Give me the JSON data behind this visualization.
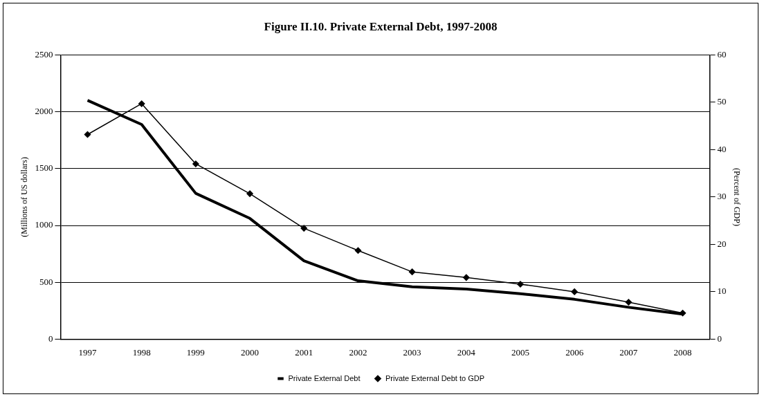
{
  "chart_data": {
    "type": "line",
    "title": "Figure II.10. Private External Debt, 1997-2008",
    "ylabel": "(Millions of US dollars)",
    "y2label": "(Percent of GDP)",
    "categories": [
      "1997",
      "1998",
      "1999",
      "2000",
      "2001",
      "2002",
      "2003",
      "2004",
      "2005",
      "2006",
      "2007",
      "2008"
    ],
    "series": [
      {
        "name": "Private External Debt",
        "color": "#000000",
        "marker": "none",
        "values": [
          2100,
          1888,
          1282,
          1062,
          689,
          513,
          460,
          440,
          400,
          350,
          280,
          220
        ]
      },
      {
        "name": "Private External Debt to GDP",
        "color": "#000000",
        "marker": "diamond",
        "axis": "y2",
        "values": [
          43.2,
          49.7,
          37.0,
          30.7,
          23.4,
          18.7,
          14.2,
          13.0,
          11.6,
          10.0,
          7.8,
          5.5
        ]
      }
    ],
    "ylim": [
      0,
      2500
    ],
    "yticks": [
      0,
      500,
      1000,
      1500,
      2000,
      2500
    ],
    "y2lim": [
      0,
      60
    ],
    "y2ticks": [
      0,
      10,
      20,
      30,
      40,
      50,
      60
    ],
    "grid": "y",
    "legend": "bottom",
    "line_style": "solid"
  }
}
